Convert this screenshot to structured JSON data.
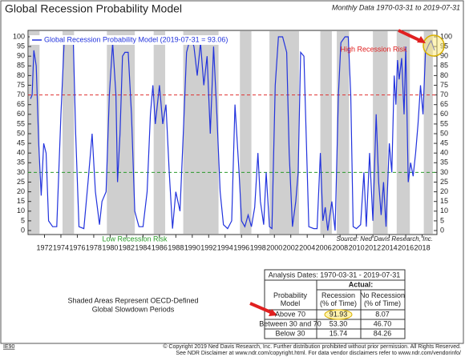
{
  "chart_data": {
    "type": "line",
    "title": "Global Recession Probability Model",
    "subtitle": "Monthly Data 1970-03-31 to 2019-07-31",
    "annotations": {
      "high": "High Recession Risk",
      "low": "Low Recession Risk",
      "source": "Source: Ned Davis Research, Inc."
    },
    "note": [
      "Shaded Areas Represent OECD-Defined",
      "Global Slowdown Periods"
    ],
    "footer": [
      "© Copyright 2019 Ned Davis Research, Inc. Further distribution prohibited without prior permission. All Rights Reserved.",
      "See NDR Disclaimer at www.ndr.com/copyright.html. For data vendor disclaimers refer to www.ndr.com/vendorinfo/"
    ],
    "code": "IE90",
    "xlim": [
      1970.0,
      2019.8
    ],
    "xticks": [
      1972,
      1974,
      1976,
      1978,
      1980,
      1982,
      1984,
      1986,
      1988,
      1990,
      1992,
      1994,
      1996,
      1998,
      2000,
      2002,
      2004,
      2006,
      2008,
      2010,
      2012,
      2014,
      2016,
      2018
    ],
    "ylim": [
      0,
      100
    ],
    "yticks": [
      0,
      5,
      10,
      15,
      20,
      25,
      30,
      35,
      40,
      45,
      50,
      55,
      60,
      65,
      70,
      75,
      80,
      85,
      90,
      95,
      100
    ],
    "shaded_periods": [
      [
        1970.1,
        1971.4
      ],
      [
        1974.2,
        1975.6
      ],
      [
        1979.6,
        1983.0
      ],
      [
        1985.3,
        1986.7
      ],
      [
        1988.9,
        1993.2
      ],
      [
        1995.8,
        1997.2
      ],
      [
        1999.4,
        2003.0
      ],
      [
        2005.6,
        2007.0
      ],
      [
        2007.6,
        2009.1
      ],
      [
        2012.0,
        2013.8
      ],
      [
        2014.9,
        2016.5
      ],
      [
        2018.2,
        2019.3
      ]
    ],
    "shade_color": "#cfcfcf",
    "reference_lines": [
      {
        "value": 70,
        "color": "#e03030"
      },
      {
        "value": 30,
        "color": "#2a9a2a"
      }
    ],
    "x": [
      1970.3,
      1970.5,
      1970.7,
      1971.0,
      1971.3,
      1971.6,
      1971.9,
      1972.2,
      1972.5,
      1973.0,
      1973.5,
      1974.0,
      1974.4,
      1975.0,
      1975.5,
      1975.8,
      1976.2,
      1976.8,
      1977.3,
      1977.8,
      1978.2,
      1978.7,
      1979.0,
      1979.5,
      1979.9,
      1980.3,
      1980.7,
      1980.9,
      1981.2,
      1981.5,
      1981.8,
      1982.2,
      1982.6,
      1983.0,
      1983.5,
      1984.0,
      1984.5,
      1984.9,
      1985.2,
      1985.5,
      1986.0,
      1986.4,
      1986.8,
      1987.2,
      1987.6,
      1988.0,
      1988.5,
      1988.9,
      1989.3,
      1989.8,
      1990.2,
      1990.6,
      1991.0,
      1991.4,
      1991.8,
      1992.2,
      1992.6,
      1993.0,
      1993.4,
      1993.8,
      1994.3,
      1994.8,
      1995.2,
      1995.7,
      1996.0,
      1996.4,
      1996.8,
      1997.2,
      1997.6,
      1998.0,
      1998.3,
      1998.7,
      1999.0,
      1999.4,
      1999.7,
      2000.1,
      2000.5,
      2001.0,
      2001.5,
      2001.8,
      2002.2,
      2002.6,
      2002.9,
      2003.2,
      2003.6,
      2003.9,
      2004.2,
      2004.8,
      2005.2,
      2005.6,
      2005.9,
      2006.2,
      2006.5,
      2007.0,
      2007.4,
      2007.8,
      2008.1,
      2008.6,
      2009.0,
      2009.3,
      2009.6,
      2010.0,
      2010.5,
      2010.9,
      2011.2,
      2011.6,
      2012.0,
      2012.4,
      2012.7,
      2013.0,
      2013.3,
      2013.6,
      2014.0,
      2014.3,
      2014.6,
      2014.8,
      2015.0,
      2015.2,
      2015.5,
      2015.8,
      2016.0,
      2016.3,
      2016.6,
      2016.9,
      2017.2,
      2017.5,
      2017.8,
      2018.1,
      2018.4,
      2018.8,
      2019.1,
      2019.5
    ],
    "series": [
      {
        "name": "Global Recession Probability Model (2019-07-31 = 93.06)",
        "color": "#2233dd",
        "values": [
          68,
          70,
          93,
          85,
          45,
          18,
          45,
          40,
          5,
          2,
          2,
          60,
          98,
          100,
          100,
          50,
          2,
          1,
          25,
          50,
          20,
          3,
          15,
          20,
          70,
          97,
          70,
          25,
          50,
          90,
          92,
          92,
          60,
          10,
          2,
          2,
          20,
          60,
          75,
          55,
          75,
          55,
          65,
          30,
          1,
          20,
          10,
          50,
          92,
          100,
          95,
          80,
          97,
          75,
          90,
          50,
          95,
          60,
          20,
          3,
          1,
          5,
          65,
          30,
          5,
          2,
          8,
          2,
          12,
          40,
          15,
          3,
          30,
          2,
          1,
          75,
          100,
          100,
          92,
          40,
          2,
          15,
          30,
          92,
          90,
          45,
          2,
          1,
          1,
          40,
          5,
          12,
          0,
          15,
          0,
          70,
          97,
          100,
          100,
          70,
          2,
          1,
          3,
          30,
          2,
          40,
          5,
          60,
          25,
          8,
          25,
          2,
          45,
          30,
          80,
          65,
          88,
          78,
          89,
          60,
          95,
          25,
          35,
          28,
          40,
          55,
          75,
          60,
          92,
          96,
          98,
          93.06
        ]
      }
    ]
  },
  "table": {
    "title": "Analysis Dates: 1970-03-31 - 2019-07-31",
    "group_header": "Actual:",
    "headers": [
      "Probability Model",
      "Recession (% of Time)",
      "No Recession (% of Time)"
    ],
    "rows": [
      [
        "Above 70",
        "91.93",
        "8.07"
      ],
      [
        "Between 30 and 70",
        "53.30",
        "46.70"
      ],
      [
        "Below 30",
        "15.74",
        "84.26"
      ]
    ]
  }
}
